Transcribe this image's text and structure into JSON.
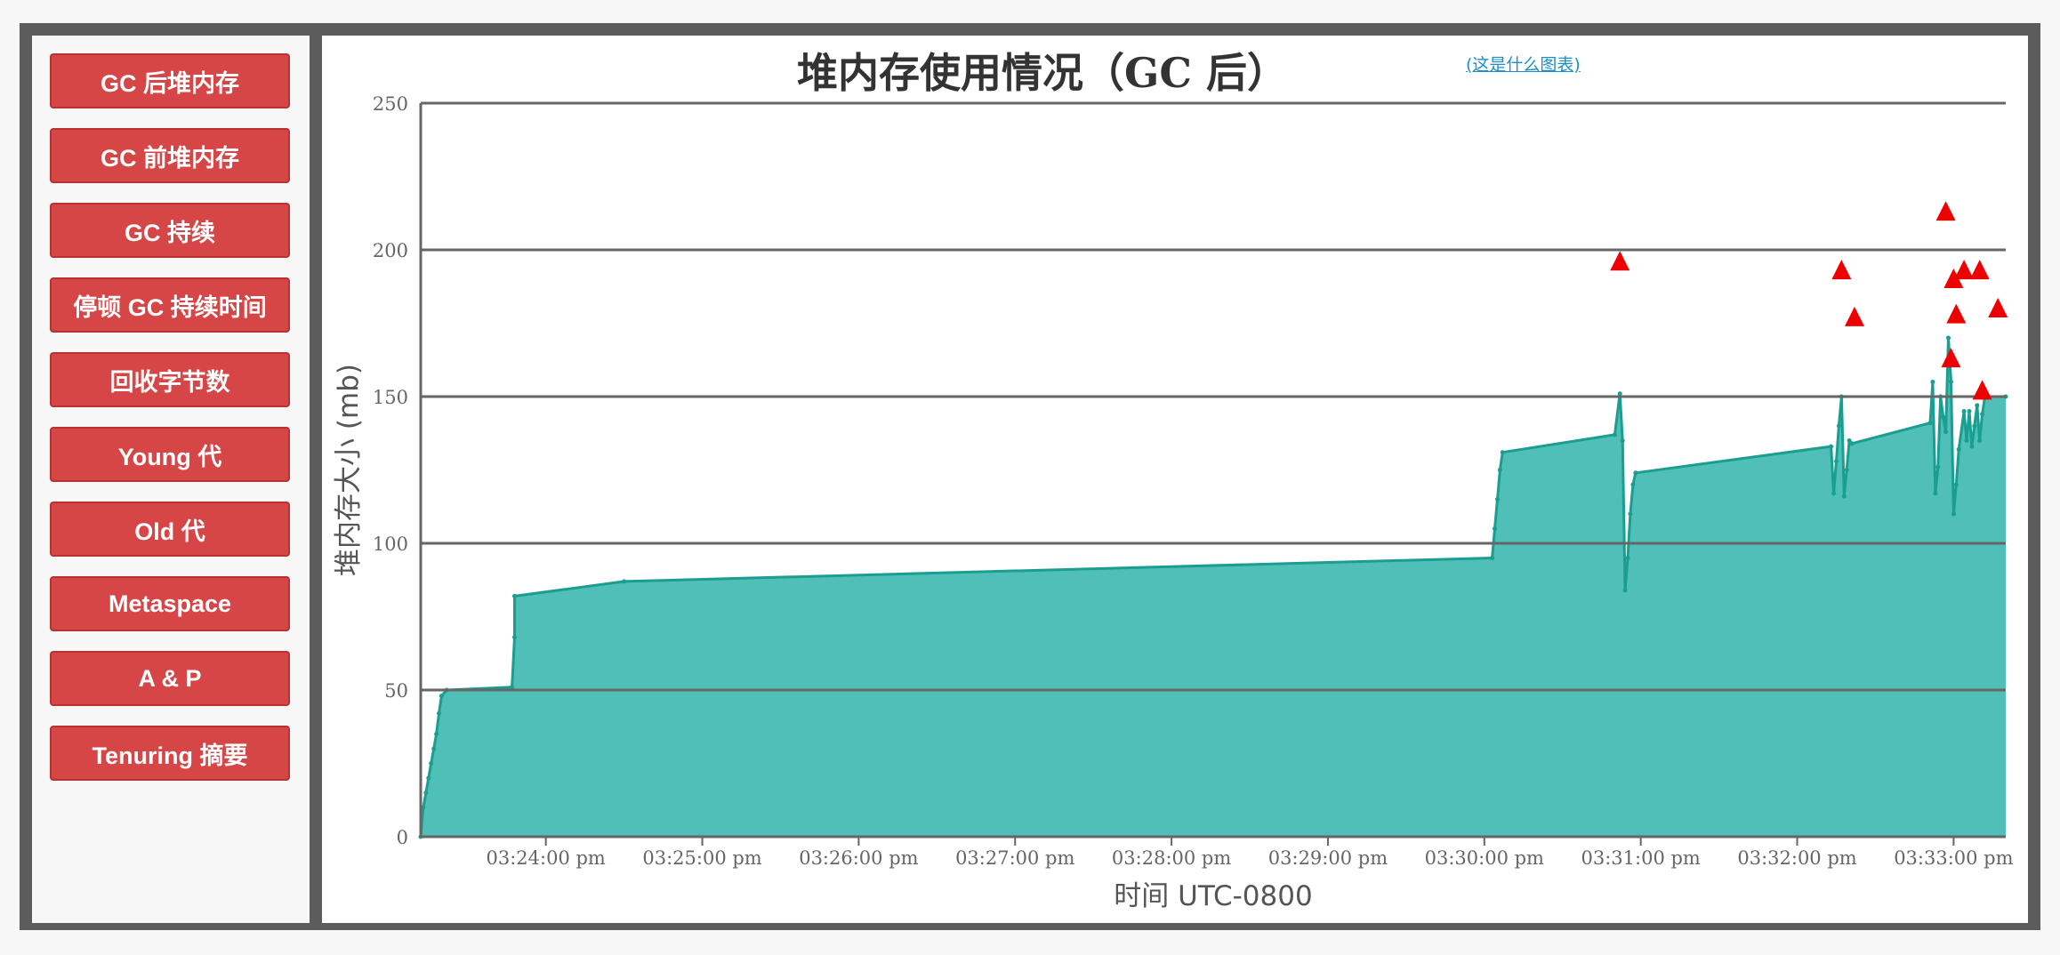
{
  "sidebar": {
    "buttons": [
      {
        "label": "GC 后堆内存"
      },
      {
        "label": "GC 前堆内存"
      },
      {
        "label": "GC 持续"
      },
      {
        "label": "停顿 GC 持续时间"
      },
      {
        "label": "回收字节数"
      },
      {
        "label": "Young 代"
      },
      {
        "label": "Old 代"
      },
      {
        "label": "Metaspace"
      },
      {
        "label": "A & P"
      },
      {
        "label": "Tenuring 摘要"
      }
    ]
  },
  "chart_header": {
    "title": "堆内存使用情况（GC 后）",
    "help_link": "(这是什么图表)"
  },
  "colors": {
    "button_red": "#d64646",
    "series_stroke": "#1a9e91",
    "series_fill": "#50bfb8",
    "marker_red": "#ee0000",
    "grid": "#666666"
  },
  "chart_data": {
    "type": "area",
    "title": "堆内存使用情况（GC 后）",
    "xlabel": "时间 UTC-0800",
    "ylabel": "堆内存大小 (mb)",
    "ylim": [
      0,
      250
    ],
    "yticks": [
      0,
      50,
      100,
      150,
      200,
      250
    ],
    "yticks_labels": [
      "0",
      "50",
      "100",
      "150",
      "200",
      "250"
    ],
    "xlim": [
      "15:23:12",
      "15:33:20"
    ],
    "xticks": [
      "15:24:00",
      "15:25:00",
      "15:26:00",
      "15:27:00",
      "15:28:00",
      "15:29:00",
      "15:30:00",
      "15:31:00",
      "15:32:00",
      "15:33:00"
    ],
    "xticks_labels": [
      "03:24:00 pm",
      "03:25:00 pm",
      "03:26:00 pm",
      "03:27:00 pm",
      "03:28:00 pm",
      "03:29:00 pm",
      "03:30:00 pm",
      "03:31:00 pm",
      "03:32:00 pm",
      "03:33:00 pm"
    ],
    "grid": true,
    "legend": "none",
    "series": [
      {
        "points": [
          [
            "15:23:12",
            0
          ],
          [
            "15:23:13",
            10
          ],
          [
            "15:23:14",
            15
          ],
          [
            "15:23:15",
            20
          ],
          [
            "15:23:16",
            25
          ],
          [
            "15:23:17",
            30
          ],
          [
            "15:23:18",
            35
          ],
          [
            "15:23:19",
            42
          ],
          [
            "15:23:20",
            48
          ],
          [
            "15:23:22",
            50
          ],
          [
            "15:23:47",
            51
          ],
          [
            "15:23:48",
            68
          ],
          [
            "15:23:48",
            82
          ],
          [
            "15:24:30",
            87
          ],
          [
            "15:30:03",
            95
          ],
          [
            "15:30:04",
            105
          ],
          [
            "15:30:05",
            115
          ],
          [
            "15:30:06",
            125
          ],
          [
            "15:30:07",
            131
          ],
          [
            "15:30:50",
            137
          ],
          [
            "15:30:52",
            151
          ],
          [
            "15:30:53",
            135
          ],
          [
            "15:30:54",
            84
          ],
          [
            "15:30:55",
            95
          ],
          [
            "15:30:56",
            110
          ],
          [
            "15:30:57",
            120
          ],
          [
            "15:30:58",
            124
          ],
          [
            "15:32:13",
            133
          ],
          [
            "15:32:14",
            117
          ],
          [
            "15:32:15",
            128
          ],
          [
            "15:32:16",
            140
          ],
          [
            "15:32:17",
            150
          ],
          [
            "15:32:18",
            116
          ],
          [
            "15:32:19",
            125
          ],
          [
            "15:32:20",
            135
          ],
          [
            "15:32:21",
            134
          ],
          [
            "15:32:51",
            141
          ],
          [
            "15:32:52",
            155
          ],
          [
            "15:32:53",
            117
          ],
          [
            "15:32:54",
            126
          ],
          [
            "15:32:55",
            150
          ],
          [
            "15:32:56",
            143
          ],
          [
            "15:32:57",
            138
          ],
          [
            "15:32:58",
            170
          ],
          [
            "15:32:59",
            155
          ],
          [
            "15:33:00",
            110
          ],
          [
            "15:33:01",
            120
          ],
          [
            "15:33:02",
            132
          ],
          [
            "15:33:04",
            145
          ],
          [
            "15:33:05",
            135
          ],
          [
            "15:33:06",
            145
          ],
          [
            "15:33:07",
            133
          ],
          [
            "15:33:08",
            140
          ],
          [
            "15:33:09",
            147
          ],
          [
            "15:33:10",
            135
          ],
          [
            "15:33:11",
            144
          ],
          [
            "15:33:12",
            150
          ],
          [
            "15:33:20",
            150
          ]
        ]
      }
    ],
    "full_gc_markers": [
      {
        "x": "15:30:52",
        "y": 196
      },
      {
        "x": "15:32:17",
        "y": 193
      },
      {
        "x": "15:32:22",
        "y": 177
      },
      {
        "x": "15:32:57",
        "y": 213
      },
      {
        "x": "15:32:59",
        "y": 163
      },
      {
        "x": "15:33:00",
        "y": 190
      },
      {
        "x": "15:33:01",
        "y": 178
      },
      {
        "x": "15:33:04",
        "y": 193
      },
      {
        "x": "15:33:10",
        "y": 193
      },
      {
        "x": "15:33:11",
        "y": 152
      },
      {
        "x": "15:33:17",
        "y": 180
      }
    ]
  }
}
